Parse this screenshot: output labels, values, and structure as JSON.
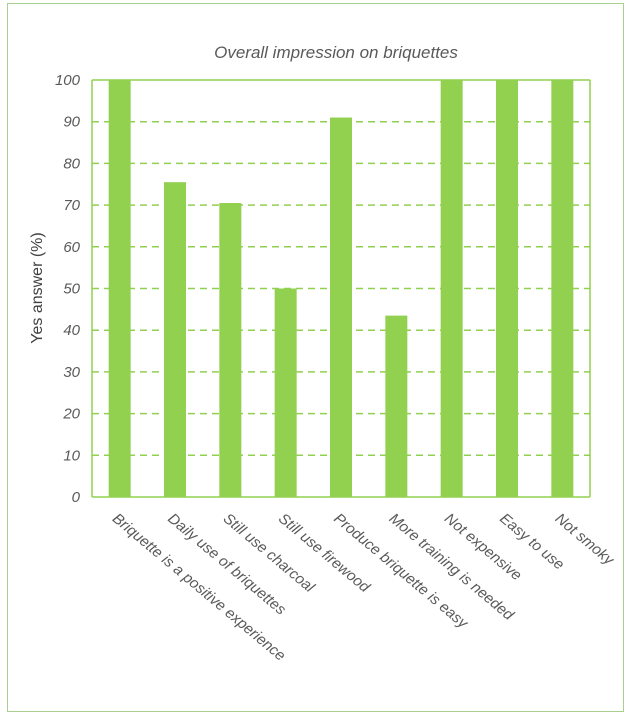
{
  "chart_data": {
    "type": "bar",
    "title": "Overall impression on briquettes",
    "ylabel": "Yes answer (%)",
    "xlabel": "",
    "ylim": [
      0,
      100
    ],
    "yticks": [
      "0",
      "10",
      "20",
      "30",
      "40",
      "50",
      "60",
      "70",
      "80",
      "90",
      "100"
    ],
    "categories": [
      "Briquette is a positive experience",
      "Daily use of briquettes",
      "Still use charcoal",
      "Still use firewood",
      "Produce briquette is easy",
      "More training is needed",
      "Not expensive",
      "Easy to use",
      "Not smoky"
    ],
    "values": [
      100,
      75.5,
      70.5,
      50,
      91,
      43.5,
      100,
      100,
      100
    ],
    "grid": "horizontal dashed",
    "colors": {
      "bar": "#92d050",
      "grid": "#92d050",
      "frame": "#a9d18e"
    }
  }
}
